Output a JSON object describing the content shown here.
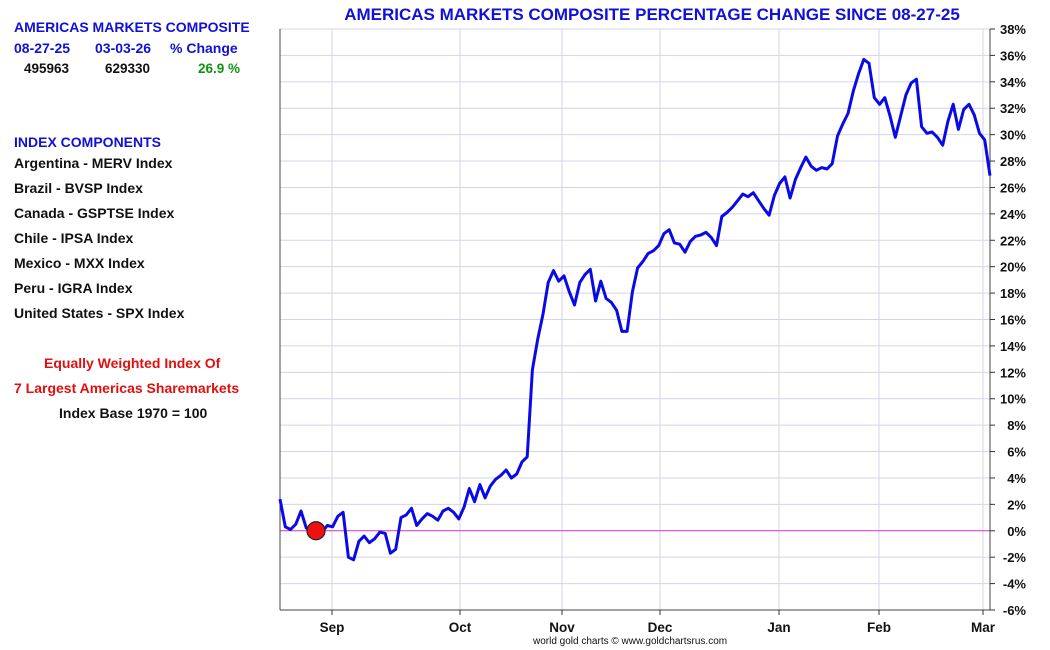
{
  "left_panel": {
    "heading": "AMERICAS MARKETS COMPOSITE",
    "col_headers": [
      "08-27-25",
      "03-03-26",
      "% Change"
    ],
    "values": [
      "495963",
      "629330",
      "26.9 %"
    ],
    "components_heading": "INDEX COMPONENTS",
    "components": [
      "Argentina - MERV Index",
      "Brazil - BVSP Index",
      "Canada - GSPTSE Index",
      "Chile - IPSA Index",
      "Mexico - MXX Index",
      "Peru - IGRA Index",
      "United States - SPX Index"
    ],
    "note_line1": "Equally Weighted Index Of",
    "note_line2": "7 Largest Americas Sharemarkets",
    "note_line3": "Index Base 1970 = 100"
  },
  "footer": "world gold charts © www.goldchartsrus.com",
  "colors": {
    "line": "#0a0ae6",
    "zero_line": "#cc33cc",
    "marker": "#ee1111",
    "title": "#1010d8",
    "grid": "#d4d4ea"
  },
  "chart_data": {
    "type": "line",
    "title": "AMERICAS MARKETS COMPOSITE PERCENTAGE CHANGE SINCE 08-27-25",
    "xlabel": "",
    "ylabel": "",
    "ylim": [
      -6,
      38
    ],
    "y_ticks": [
      "38%",
      "36%",
      "34%",
      "32%",
      "30%",
      "28%",
      "26%",
      "24%",
      "22%",
      "20%",
      "18%",
      "16%",
      "14%",
      "12%",
      "10%",
      "8%",
      "6%",
      "4%",
      "2%",
      "0%",
      "-2%",
      "-4%",
      "-6%"
    ],
    "x_tick_labels": [
      "Sep",
      "Oct",
      "Nov",
      "Dec",
      "Jan",
      "Feb",
      "Mar"
    ],
    "grid": true,
    "start_marker": {
      "label": "08-27-25",
      "value": 0.0
    },
    "series": [
      {
        "values": [
          2.4,
          0.3,
          0.1,
          0.5,
          1.5,
          0.2,
          0.0,
          0.5,
          -0.1,
          0.4,
          0.3,
          1.1,
          1.4,
          -2.0,
          -2.2,
          -0.8,
          -0.4,
          -0.9,
          -0.6,
          -0.1,
          -0.2,
          -1.7,
          -1.4,
          1.0,
          1.2,
          1.7,
          0.4,
          0.9,
          1.3,
          1.1,
          0.8,
          1.5,
          1.7,
          1.4,
          0.9,
          1.8,
          3.2,
          2.2,
          3.5,
          2.5,
          3.4,
          3.9,
          4.2,
          4.6,
          4.0,
          4.3,
          5.2,
          5.6,
          12.2,
          14.5,
          16.4,
          18.8,
          19.7,
          18.9,
          19.3,
          18.1,
          17.1,
          18.8,
          19.4,
          19.8,
          17.4,
          18.9,
          17.6,
          17.3,
          16.7,
          15.1,
          15.1,
          18.1,
          19.9,
          20.4,
          21.0,
          21.2,
          21.6,
          22.5,
          22.8,
          21.8,
          21.7,
          21.1,
          21.9,
          22.3,
          22.4,
          22.6,
          22.2,
          21.6,
          23.8,
          24.1,
          24.5,
          25.0,
          25.5,
          25.3,
          25.6,
          25.0,
          24.4,
          23.9,
          25.4,
          26.3,
          26.8,
          25.2,
          26.6,
          27.5,
          28.3,
          27.6,
          27.3,
          27.5,
          27.4,
          27.8,
          29.9,
          30.8,
          31.6,
          33.3,
          34.6,
          35.7,
          35.4,
          32.8,
          32.3,
          32.8,
          31.4,
          29.8,
          31.4,
          33.0,
          33.9,
          34.2,
          30.6,
          30.1,
          30.2,
          29.8,
          29.2,
          31.0,
          32.3,
          30.4,
          31.9,
          32.3,
          31.5,
          30.1,
          29.6,
          26.9
        ]
      }
    ]
  }
}
